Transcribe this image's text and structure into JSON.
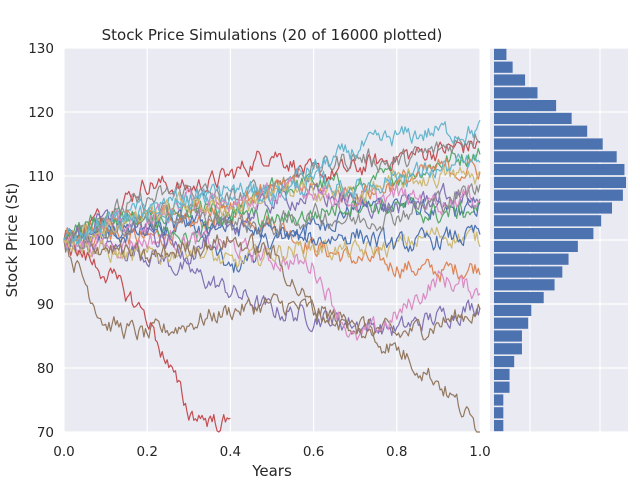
{
  "chart_data": [
    {
      "type": "line",
      "title": "Stock Price Simulations (20 of 16000 plotted)",
      "xlabel": "Years",
      "ylabel": "Stock Price (St)",
      "xlim": [
        0.0,
        1.0
      ],
      "ylim": [
        70,
        130
      ],
      "x_ticks": [
        "0.0",
        "0.2",
        "0.4",
        "0.6",
        "0.8",
        "1.0"
      ],
      "y_ticks": [
        "70",
        "80",
        "90",
        "100",
        "110",
        "120",
        "130"
      ],
      "grid": true,
      "background": "#eaeaf2",
      "x_points": [
        0.0,
        0.1,
        0.2,
        0.3,
        0.4,
        0.5,
        0.6,
        0.7,
        0.8,
        0.9,
        1.0
      ],
      "series": [
        {
          "color": "#4c72b0",
          "values": [
            100,
            101,
            102,
            103,
            95,
            100,
            102,
            105,
            106,
            104,
            105
          ]
        },
        {
          "color": "#dd8452",
          "values": [
            100,
            101,
            100,
            102,
            104,
            103,
            99,
            97,
            96,
            95,
            96
          ]
        },
        {
          "color": "#55a868",
          "values": [
            100,
            104,
            103,
            100,
            103,
            108,
            109,
            108,
            110,
            112,
            114
          ]
        },
        {
          "color": "#c44e52",
          "values": [
            100,
            104,
            109,
            108,
            110,
            114,
            110,
            111,
            113,
            114,
            115
          ]
        },
        {
          "color": "#8172b3",
          "values": [
            100,
            99,
            98,
            95,
            92,
            89,
            88,
            87,
            86,
            88,
            90
          ]
        },
        {
          "color": "#937860",
          "values": [
            100,
            87,
            85,
            87,
            89,
            90,
            89,
            87,
            85,
            87,
            89
          ]
        },
        {
          "color": "#da8bc3",
          "values": [
            100,
            99,
            100,
            100,
            99,
            97,
            96,
            84,
            88,
            94,
            92
          ]
        },
        {
          "color": "#8c8c8c",
          "values": [
            100,
            104,
            106,
            108,
            106,
            109,
            111,
            113,
            112,
            114,
            117
          ]
        },
        {
          "color": "#ccb974",
          "values": [
            100,
            98,
            97,
            99,
            96,
            98,
            99,
            98,
            99,
            101,
            100
          ]
        },
        {
          "color": "#64b5cd",
          "values": [
            100,
            102,
            105,
            107,
            105,
            108,
            111,
            114,
            116,
            117,
            117
          ]
        },
        {
          "color": "#4c72b0",
          "values": [
            100,
            101,
            101,
            103,
            102,
            101,
            100,
            101,
            99,
            100,
            101
          ]
        },
        {
          "color": "#dd8452",
          "values": [
            100,
            102,
            104,
            105,
            106,
            108,
            108,
            107,
            109,
            111,
            111
          ]
        },
        {
          "color": "#55a868",
          "values": [
            100,
            103,
            104,
            105,
            104,
            103,
            104,
            106,
            105,
            104,
            105
          ]
        },
        {
          "color": "#c44e52",
          "values": [
            100,
            95,
            88,
            73,
            71
          ]
        },
        {
          "color": "#8172b3",
          "values": [
            100,
            103,
            101,
            98,
            102,
            106,
            107,
            106,
            105,
            107,
            106
          ]
        },
        {
          "color": "#937860",
          "values": [
            100,
            99,
            97,
            99,
            100,
            98,
            89,
            86,
            83,
            78,
            70
          ]
        },
        {
          "color": "#da8bc3",
          "values": [
            100,
            102,
            103,
            106,
            105,
            107,
            108,
            106,
            107,
            106,
            107
          ]
        },
        {
          "color": "#8c8c8c",
          "values": [
            100,
            101,
            103,
            104,
            103,
            102,
            104,
            103,
            104,
            106,
            108
          ]
        },
        {
          "color": "#ccb974",
          "values": [
            100,
            102,
            104,
            106,
            105,
            107,
            108,
            107,
            109,
            110,
            110
          ]
        },
        {
          "color": "#64b5cd",
          "values": [
            100,
            103,
            104,
            106,
            108,
            107,
            109,
            108,
            110,
            111,
            112
          ]
        }
      ]
    },
    {
      "type": "bar",
      "orientation": "horizontal",
      "title": "",
      "color": "#4c72b0",
      "ylim": [
        70,
        130
      ],
      "bin_width": 2,
      "bins_lower_edge": [
        70,
        72,
        74,
        76,
        78,
        80,
        82,
        84,
        86,
        88,
        90,
        92,
        94,
        96,
        98,
        100,
        102,
        104,
        106,
        108,
        110,
        112,
        114,
        116,
        118,
        120,
        122,
        124,
        126,
        128
      ],
      "counts": [
        6,
        6,
        6,
        10,
        10,
        13,
        18,
        18,
        22,
        24,
        32,
        39,
        44,
        48,
        54,
        64,
        69,
        76,
        83,
        85,
        84,
        79,
        70,
        60,
        50,
        40,
        28,
        20,
        12,
        8
      ]
    }
  ]
}
